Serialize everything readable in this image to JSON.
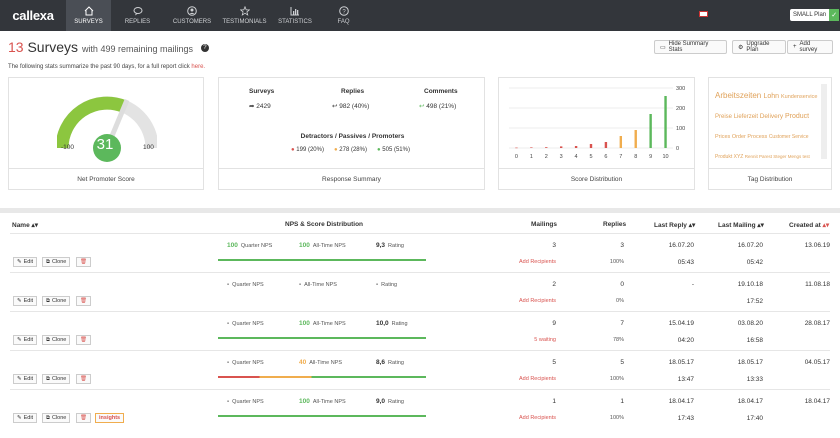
{
  "nav": {
    "logo": "callexa",
    "items": [
      {
        "label": "SURVEYS",
        "icon": "home-icon"
      },
      {
        "label": "REPLIES",
        "icon": "chat-icon"
      },
      {
        "label": "CUSTOMERS",
        "icon": "user-icon"
      },
      {
        "label": "TESTIMONIALS",
        "icon": "star-icon"
      },
      {
        "label": "STATISTICS",
        "icon": "chart-icon"
      },
      {
        "label": "FAQ",
        "icon": "question-icon"
      }
    ],
    "plan_label": "SMALL Plan",
    "plan_check": "✓"
  },
  "header": {
    "count": "13",
    "title_word": "Surveys",
    "subtitle": "with 499 remaining mailings",
    "hint": "The following stats summarize the past 90 days, for a full report click",
    "hint_link": "here.",
    "buttons": {
      "hide": "Hide Summary Stats",
      "upgrade": "Upgrade Plan",
      "add": "Add survey"
    }
  },
  "nps": {
    "min": "-100",
    "max": "100",
    "value": "31",
    "label": "Net Promoter Score"
  },
  "summary": {
    "surveys_label": "Surveys",
    "surveys_value": "2429",
    "replies_label": "Replies",
    "replies_value": "982 (40%)",
    "comments_label": "Comments",
    "comments_value": "498 (21%)",
    "dpp_title": "Detractors / Passives / Promoters",
    "detractors": "199 (20%)",
    "passives": "278 (28%)",
    "promoters": "505 (51%)",
    "footer": "Response Summary"
  },
  "chart_data": {
    "type": "bar",
    "categories": [
      "0",
      "1",
      "2",
      "3",
      "4",
      "5",
      "6",
      "7",
      "8",
      "9",
      "10"
    ],
    "values": [
      2,
      3,
      4,
      8,
      10,
      20,
      30,
      60,
      90,
      170,
      260
    ],
    "colors": [
      "#d9534f",
      "#d9534f",
      "#d9534f",
      "#d9534f",
      "#d9534f",
      "#d9534f",
      "#d9534f",
      "#f0ad4e",
      "#f0ad4e",
      "#5cb85c",
      "#5cb85c"
    ],
    "yticks": [
      "0",
      "100",
      "200",
      "300"
    ],
    "ylim": [
      0,
      300
    ],
    "footer": "Score Distribution"
  },
  "tags": {
    "words": [
      "Arbeitszeiten",
      "Lohn",
      "Kundenservice",
      "Preise",
      "Lieferzeit",
      "Delivery",
      "Product",
      "Prices",
      "Order",
      "Process",
      "Customer Service",
      "Produkt XYZ",
      "Rennit Parest",
      "Steger",
      "Mengs",
      "test",
      "Wie schätzen Sie die Servicequalität",
      "Ihres Maklerbetreuers ein?",
      "Wie zufrieden sind Sie mit Ihrem Maklerbetreuer insgesamt?"
    ],
    "footer": "Tag Distribution"
  },
  "table": {
    "headers": {
      "name": "Name",
      "nps": "NPS & Score Distribution",
      "mailings": "Mailings",
      "replies": "Replies",
      "last_reply": "Last Reply",
      "last_mailing": "Last Mailing",
      "created": "Created at"
    },
    "labels": {
      "quarter": "Quarter NPS",
      "alltime": "All-Time NPS",
      "rating": "Rating",
      "edit": "Edit",
      "clone": "Clone"
    },
    "rows": [
      {
        "q": "100",
        "a": "100",
        "r": "9,3",
        "mail": "3",
        "mail_sub": "Add Recipients",
        "rep": "3",
        "rep_sub": "100%",
        "lr_date": "16.07.20",
        "lr_time": "05:43",
        "lm_date": "16.07.20",
        "lm_time": "05:42",
        "created": "13.06.19"
      },
      {
        "q": "-",
        "a": "-",
        "r": "-",
        "mail": "2",
        "mail_sub": "Add Recipients",
        "rep": "0",
        "rep_sub": "0%",
        "lr_date": "-",
        "lr_time": "",
        "lm_date": "19.10.18",
        "lm_time": "17:52",
        "created": "11.08.18"
      },
      {
        "q": "-",
        "a": "100",
        "r": "10,0",
        "mail": "9",
        "mail_sub": "5 waiting",
        "rep": "7",
        "rep_sub": "78%",
        "lr_date": "15.04.19",
        "lr_time": "04:20",
        "lm_date": "03.08.20",
        "lm_time": "16:58",
        "created": "28.08.17"
      },
      {
        "q": "-",
        "a": "40",
        "r": "8,6",
        "mail": "5",
        "mail_sub": "Add Recipients",
        "rep": "5",
        "rep_sub": "100%",
        "lr_date": "18.05.17",
        "lr_time": "13:47",
        "lm_date": "18.05.17",
        "lm_time": "13:33",
        "created": "04.05.17"
      },
      {
        "q": "-",
        "a": "100",
        "r": "9,0",
        "mail": "1",
        "mail_sub": "Add Recipients",
        "rep": "1",
        "rep_sub": "100%",
        "lr_date": "18.04.17",
        "lr_time": "17:43",
        "lm_date": "18.04.17",
        "lm_time": "17:40",
        "created": "18.04.17",
        "badge": "insights"
      }
    ]
  }
}
